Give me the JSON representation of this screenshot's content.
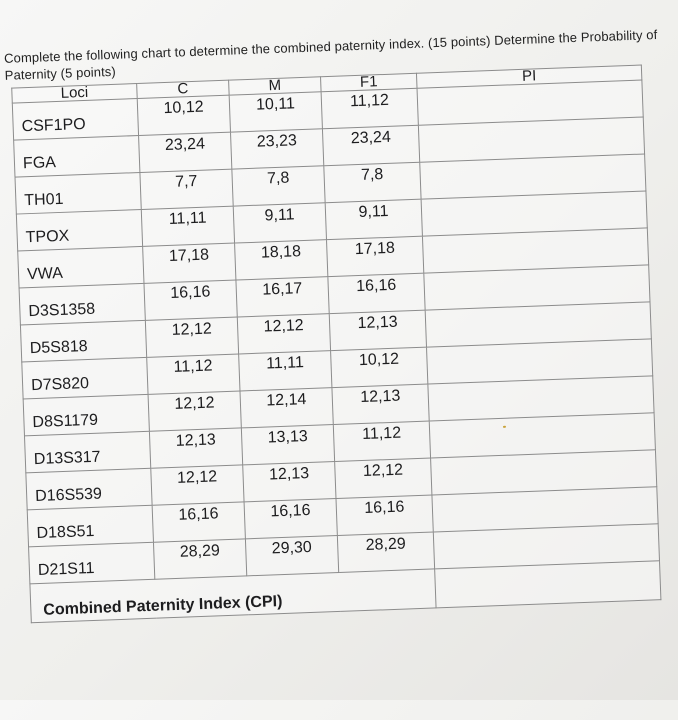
{
  "instructions": "Complete the following chart to determine the combined paternity index. (15 points) Determine the Probability of Paternity (5 points)",
  "table": {
    "headers": {
      "loci": "Loci",
      "c": "C",
      "m": "M",
      "f1": "F1",
      "pi": "PI"
    },
    "rows": [
      {
        "locus": "CSF1PO",
        "c": "10,12",
        "m": "10,11",
        "f1": "11,12",
        "pi": ""
      },
      {
        "locus": "FGA",
        "c": "23,24",
        "m": "23,23",
        "f1": "23,24",
        "pi": ""
      },
      {
        "locus": "TH01",
        "c": "7,7",
        "m": "7,8",
        "f1": "7,8",
        "pi": ""
      },
      {
        "locus": "TPOX",
        "c": "11,11",
        "m": "9,11",
        "f1": "9,11",
        "pi": ""
      },
      {
        "locus": "VWA",
        "c": "17,18",
        "m": "18,18",
        "f1": "17,18",
        "pi": ""
      },
      {
        "locus": "D3S1358",
        "c": "16,16",
        "m": "16,17",
        "f1": "16,16",
        "pi": ""
      },
      {
        "locus": "D5S818",
        "c": "12,12",
        "m": "12,12",
        "f1": "12,13",
        "pi": ""
      },
      {
        "locus": "D7S820",
        "c": "11,12",
        "m": "11,11",
        "f1": "10,12",
        "pi": ""
      },
      {
        "locus": "D8S1179",
        "c": "12,12",
        "m": "12,14",
        "f1": "12,13",
        "pi": ""
      },
      {
        "locus": "D13S317",
        "c": "12,13",
        "m": "13,13",
        "f1": "11,12",
        "pi": ""
      },
      {
        "locus": "D16S539",
        "c": "12,12",
        "m": "12,13",
        "f1": "12,12",
        "pi": ""
      },
      {
        "locus": "D18S51",
        "c": "16,16",
        "m": "16,16",
        "f1": "16,16",
        "pi": ""
      },
      {
        "locus": "D21S11",
        "c": "28,29",
        "m": "29,30",
        "f1": "28,29",
        "pi": ""
      }
    ],
    "footer_label": "Combined Paternity Index (CPI)"
  }
}
